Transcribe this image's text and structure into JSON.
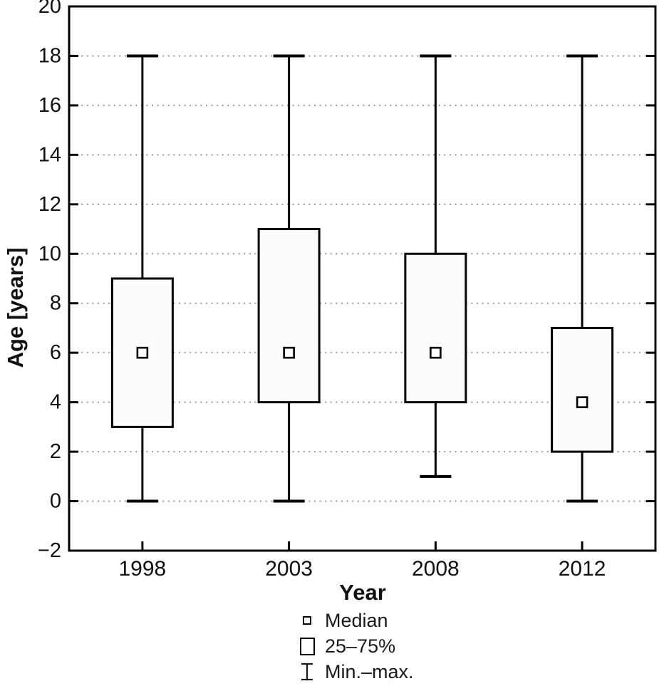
{
  "figure": {
    "background": "#ffffff"
  },
  "legend": {
    "items": [
      {
        "symbol": "median-square-icon",
        "label": "Median"
      },
      {
        "symbol": "iqr-box-icon",
        "label": "25–75%"
      },
      {
        "symbol": "min-max-ibeam-icon",
        "label": "Min.–max."
      }
    ]
  },
  "chart_data": {
    "type": "boxplot",
    "title": "",
    "xlabel": "Year",
    "ylabel": "Age [years]",
    "categories": [
      "1998",
      "2003",
      "2008",
      "2012"
    ],
    "series": [
      {
        "category": "1998",
        "min": 0,
        "q1": 3,
        "median": 6,
        "q3": 9,
        "max": 18
      },
      {
        "category": "2003",
        "min": 0,
        "q1": 4,
        "median": 6,
        "q3": 11,
        "max": 18
      },
      {
        "category": "2008",
        "min": 1,
        "q1": 4,
        "median": 6,
        "q3": 10,
        "max": 18
      },
      {
        "category": "2012",
        "min": 0,
        "q1": 2,
        "median": 4,
        "q3": 7,
        "max": 18
      }
    ],
    "ylim": [
      -2,
      20
    ],
    "ytick_step": 2,
    "grid": "horizontal-dotted",
    "legend_position": "bottom",
    "colors": {
      "line": "#000000",
      "grid": "#9a9a9a",
      "box_fill": "#fcfcfc",
      "median_fill": "#ffffff",
      "text": "#111111"
    }
  }
}
